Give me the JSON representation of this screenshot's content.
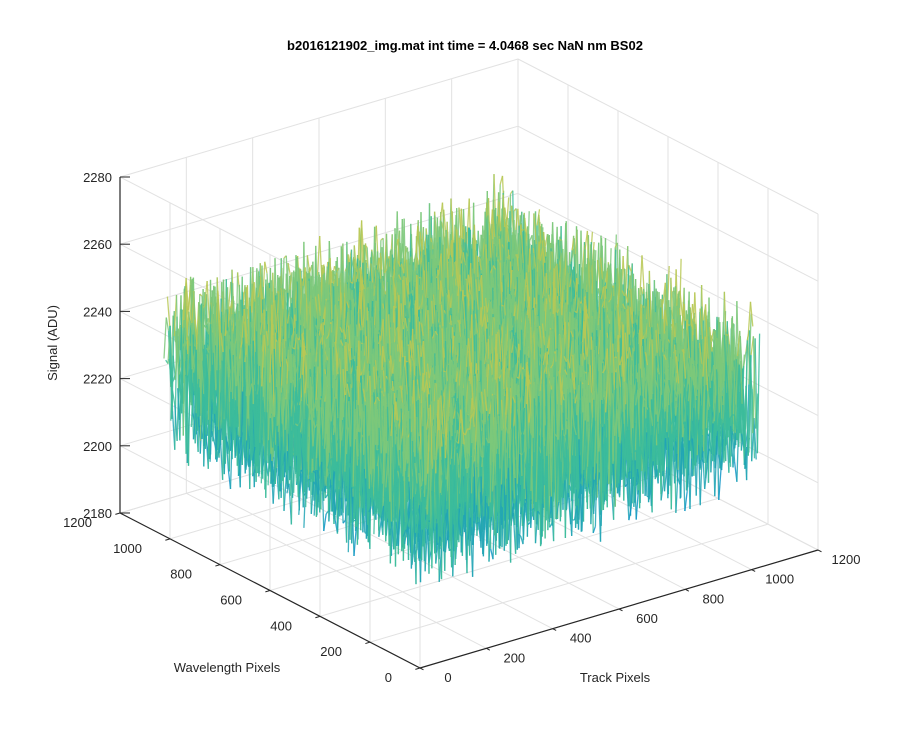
{
  "chart_data": {
    "type": "surface3d",
    "title": "b2016121902_img.mat int time = 4.0468 sec  NaN nm BS02",
    "xlabel": "Track Pixels",
    "ylabel": "Wavelength Pixels",
    "zlabel": "Signal (ADU)",
    "xlim": [
      0,
      1200
    ],
    "ylim": [
      0,
      1200
    ],
    "zlim": [
      2180,
      2280
    ],
    "xticks": [
      "0",
      "200",
      "400",
      "600",
      "800",
      "1000",
      "1200"
    ],
    "yticks": [
      "0",
      "200",
      "400",
      "600",
      "800",
      "1000",
      "1200"
    ],
    "zticks": [
      "2180",
      "2200",
      "2220",
      "2240",
      "2260",
      "2280"
    ],
    "grid": true,
    "surface": {
      "x_extent": [
        0,
        1024
      ],
      "y_extent": [
        0,
        1024
      ],
      "z_mean": 2230,
      "z_min": 2195,
      "z_max": 2270,
      "colormap": [
        "#0f95c8",
        "#21a5b5",
        "#3cbc9b",
        "#7cc87a",
        "#b8c855",
        "#e3bf3c"
      ]
    }
  }
}
